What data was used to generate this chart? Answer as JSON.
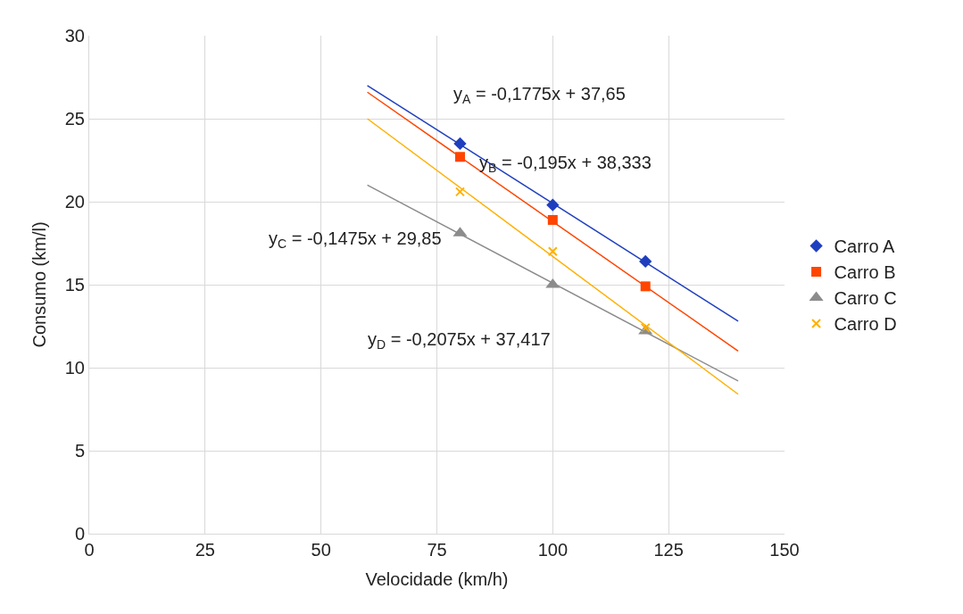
{
  "chart_data": {
    "type": "scatter",
    "xlabel": "Velocidade (km/h)",
    "ylabel": "Consumo (km/l)",
    "xlim": [
      0,
      150
    ],
    "xticks": [
      0,
      25,
      50,
      75,
      100,
      125,
      150
    ],
    "ylim": [
      0,
      30
    ],
    "yticks": [
      0,
      5,
      10,
      15,
      20,
      25,
      30
    ],
    "grid": true,
    "legend": "right",
    "series": [
      {
        "name": "Carro A",
        "color": "#1f3fbf",
        "marker": "diamond",
        "x": [
          80,
          100,
          120
        ],
        "values": [
          23.5,
          19.8,
          16.4
        ]
      },
      {
        "name": "Carro B",
        "color": "#ff4500",
        "marker": "square",
        "x": [
          80,
          100,
          120
        ],
        "values": [
          22.7,
          18.9,
          14.9
        ]
      },
      {
        "name": "Carro C",
        "color": "#8c8c8c",
        "marker": "triangle",
        "x": [
          80,
          100,
          120
        ],
        "values": [
          18.1,
          15.0,
          12.2
        ]
      },
      {
        "name": "Carro D",
        "color": "#ffb000",
        "marker": "cross",
        "x": [
          80,
          100,
          120
        ],
        "values": [
          20.6,
          17.0,
          12.4
        ]
      },
      {
        "type": "line",
        "color": "#1f3fbf",
        "x": [
          60,
          140
        ],
        "values": [
          27.0,
          12.8
        ]
      },
      {
        "type": "line",
        "color": "#ff4500",
        "x": [
          60,
          140
        ],
        "values": [
          26.6,
          11.0
        ]
      },
      {
        "type": "line",
        "color": "#8c8c8c",
        "x": [
          60,
          140
        ],
        "values": [
          21.0,
          9.2
        ]
      },
      {
        "type": "line",
        "color": "#ffb000",
        "x": [
          60,
          140
        ],
        "values": [
          25.0,
          8.4
        ]
      }
    ],
    "annotations": [
      "y$_{A}$ = -0,1775x + 37,65",
      "y$_{B}$ = -0,195x + 38,333",
      "y$_{C}$ = -0,1475x + 29,85",
      "y$_{D}$ = -0,2075x + 37,417"
    ]
  }
}
